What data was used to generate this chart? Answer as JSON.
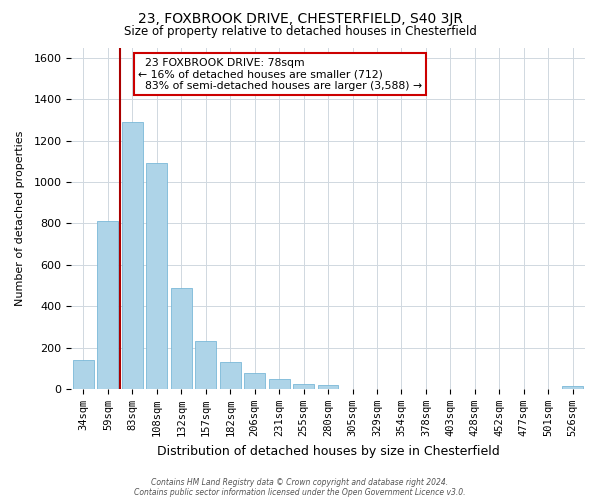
{
  "title": "23, FOXBROOK DRIVE, CHESTERFIELD, S40 3JR",
  "subtitle": "Size of property relative to detached houses in Chesterfield",
  "xlabel": "Distribution of detached houses by size in Chesterfield",
  "ylabel": "Number of detached properties",
  "bar_labels": [
    "34sqm",
    "59sqm",
    "83sqm",
    "108sqm",
    "132sqm",
    "157sqm",
    "182sqm",
    "206sqm",
    "231sqm",
    "255sqm",
    "280sqm",
    "305sqm",
    "329sqm",
    "354sqm",
    "378sqm",
    "403sqm",
    "428sqm",
    "452sqm",
    "477sqm",
    "501sqm",
    "526sqm"
  ],
  "bar_values": [
    140,
    810,
    1290,
    1090,
    490,
    230,
    130,
    75,
    50,
    25,
    20,
    0,
    0,
    0,
    0,
    0,
    0,
    0,
    0,
    0,
    12
  ],
  "bar_color": "#aed4e8",
  "bar_edge_color": "#7ab8d8",
  "marker_label": "23 FOXBROOK DRIVE: 78sqm",
  "pct_smaller": 16,
  "n_smaller": 712,
  "pct_larger": 83,
  "n_larger": 3588,
  "marker_line_color": "#aa0000",
  "annotation_box_edgecolor": "#cc0000",
  "ylim": [
    0,
    1650
  ],
  "yticks": [
    0,
    200,
    400,
    600,
    800,
    1000,
    1200,
    1400,
    1600
  ],
  "footer_line1": "Contains HM Land Registry data © Crown copyright and database right 2024.",
  "footer_line2": "Contains public sector information licensed under the Open Government Licence v3.0.",
  "background_color": "#ffffff",
  "grid_color": "#d0d8e0"
}
